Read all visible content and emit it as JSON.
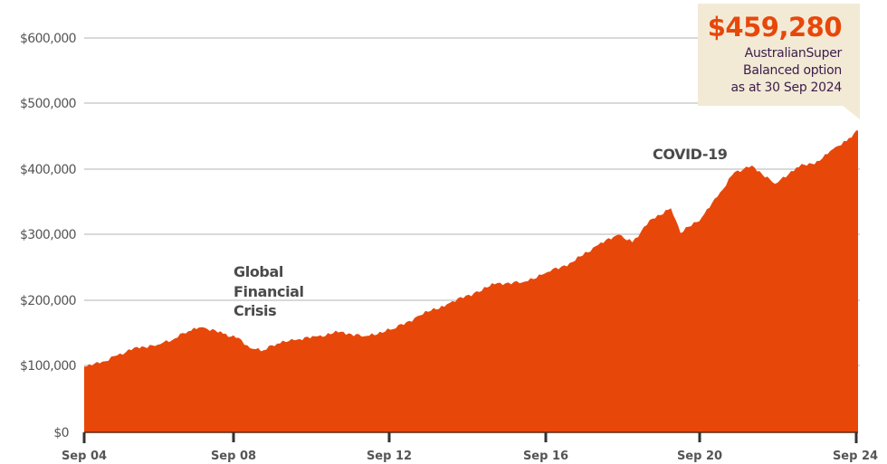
{
  "chart_data": {
    "type": "area",
    "title": "",
    "xlabel": "",
    "ylabel": "",
    "ylim": [
      0,
      600000
    ],
    "grid": true,
    "legend": null,
    "color": "#e8470a",
    "y_ticks": [
      "$0",
      "$100,000",
      "$200,000",
      "$300,000",
      "$400,000",
      "$500,000",
      "$600,000"
    ],
    "x_ticks": [
      "Sep 04",
      "Sep 08",
      "Sep 12",
      "Sep 16",
      "Sep 20",
      "Sep 24"
    ],
    "x": [
      2004.75,
      2005.15,
      2005.6,
      2006.05,
      2006.65,
      2007.1,
      2007.45,
      2007.8,
      2008.35,
      2008.75,
      2009.05,
      2009.4,
      2009.75,
      2010.2,
      2010.8,
      2011.4,
      2012.0,
      2012.75,
      2013.45,
      2014.15,
      2014.85,
      2015.45,
      2016.1,
      2016.75,
      2017.4,
      2018.0,
      2018.6,
      2018.95,
      2019.4,
      2019.95,
      2020.2,
      2020.75,
      2021.15,
      2021.6,
      2022.05,
      2022.65,
      2023.2,
      2023.8,
      2024.15,
      2024.5,
      2024.75
    ],
    "values": [
      100000,
      105000,
      117000,
      129000,
      133000,
      143000,
      154000,
      160000,
      150000,
      144000,
      128000,
      125000,
      135000,
      140000,
      146000,
      153000,
      146000,
      157000,
      178000,
      195000,
      212000,
      227000,
      228000,
      244000,
      259000,
      283000,
      301000,
      289000,
      323000,
      341000,
      303000,
      327000,
      358000,
      396000,
      406000,
      378000,
      403000,
      413000,
      431000,
      443000,
      459280
    ],
    "annotations": [
      {
        "text": [
          "Global",
          "Financial",
          "Crisis"
        ],
        "x_label": "Sep 08"
      },
      {
        "text": [
          "COVID-19"
        ],
        "x_label": "Sep 20"
      }
    ],
    "callout": {
      "value": "$459,280",
      "lines": [
        "AustralianSuper",
        "Balanced option",
        "as at 30 Sep 2024"
      ]
    }
  },
  "axis": {
    "y": [
      "$600,000",
      "$500,000",
      "$400,000",
      "$300,000",
      "$200,000",
      "$100,000",
      "$0"
    ],
    "x": [
      "Sep 04",
      "Sep 08",
      "Sep 12",
      "Sep 16",
      "Sep 20",
      "Sep 24"
    ]
  },
  "annotations": {
    "gfc": [
      "Global",
      "Financial",
      "Crisis"
    ],
    "covid": "COVID-19"
  },
  "callout": {
    "value": "$459,280",
    "line1": "AustralianSuper",
    "line2": "Balanced option",
    "line3": "as at 30 Sep 2024"
  }
}
